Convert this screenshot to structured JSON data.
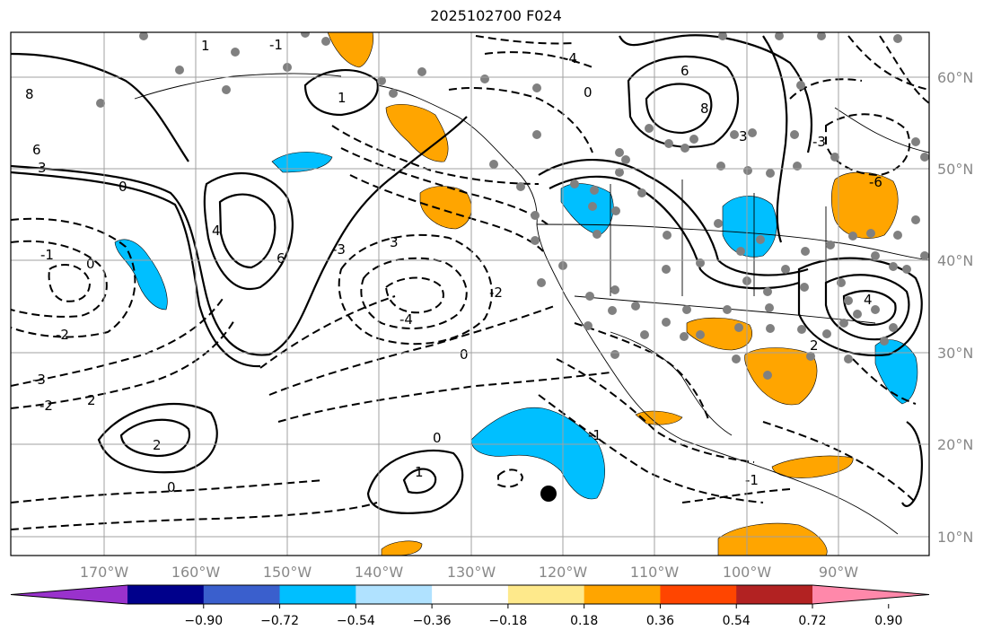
{
  "title": "2025102700 F024",
  "map": {
    "latitude_labels": [
      "60°N",
      "50°N",
      "40°N",
      "30°N",
      "20°N",
      "10°N"
    ],
    "longitude_labels": [
      "170°W",
      "160°W",
      "150°W",
      "140°W",
      "130°W",
      "120°W",
      "110°W",
      "100°W",
      "90°W"
    ],
    "contour_labels": [
      {
        "text": "8"
      },
      {
        "text": "6"
      },
      {
        "text": "3"
      },
      {
        "text": "0"
      },
      {
        "text": "-1"
      },
      {
        "text": "0"
      },
      {
        "text": "-2"
      },
      {
        "text": "-3"
      },
      {
        "text": "-2"
      },
      {
        "text": "2"
      },
      {
        "text": "2"
      },
      {
        "text": "0"
      },
      {
        "text": "4"
      },
      {
        "text": "6"
      },
      {
        "text": "3"
      },
      {
        "text": "-3"
      },
      {
        "text": "-4"
      },
      {
        "text": "-2"
      },
      {
        "text": "0"
      },
      {
        "text": "1"
      },
      {
        "text": "0"
      },
      {
        "text": "1"
      },
      {
        "text": "-1"
      },
      {
        "text": "-4"
      },
      {
        "text": "6"
      },
      {
        "text": "8"
      },
      {
        "text": "3"
      },
      {
        "text": "4"
      },
      {
        "text": "-6"
      },
      {
        "text": "-1"
      },
      {
        "text": "2"
      },
      {
        "text": "0"
      },
      {
        "text": "-1"
      },
      {
        "text": "1"
      },
      {
        "text": "-3"
      }
    ],
    "marker": "filled-circle"
  },
  "colorbar": {
    "ticks": [
      "−0.90",
      "−0.72",
      "−0.54",
      "−0.36",
      "−0.18",
      "0.18",
      "0.36",
      "0.54",
      "0.72",
      "0.90"
    ],
    "colors": [
      "#9932cc",
      "#00008b",
      "#3a5fcd",
      "#00bfff",
      "#b0e2ff",
      "#ffffff",
      "#fee98b",
      "#ffa500",
      "#ff4500",
      "#b22222",
      "#ff88aa"
    ]
  }
}
